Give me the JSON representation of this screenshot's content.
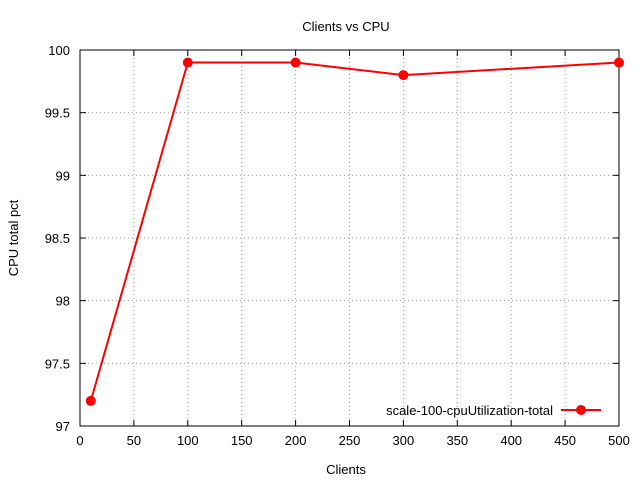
{
  "chart_data": {
    "type": "line",
    "title": "Clients vs CPU",
    "xlabel": "Clients",
    "ylabel": "CPU total pct",
    "xlim": [
      0,
      500
    ],
    "ylim": [
      97,
      100
    ],
    "xticks": [
      0,
      50,
      100,
      150,
      200,
      250,
      300,
      350,
      400,
      450,
      500
    ],
    "yticks": [
      97,
      97.5,
      98,
      98.5,
      99,
      99.5,
      100
    ],
    "grid": true,
    "legend_position": "bottom-right",
    "series": [
      {
        "name": "scale-100-cpuUtilization-total",
        "color": "#ff0000",
        "marker": "circle",
        "x": [
          10,
          100,
          200,
          300,
          500
        ],
        "y": [
          97.2,
          99.9,
          99.9,
          99.8,
          99.9
        ]
      }
    ]
  }
}
